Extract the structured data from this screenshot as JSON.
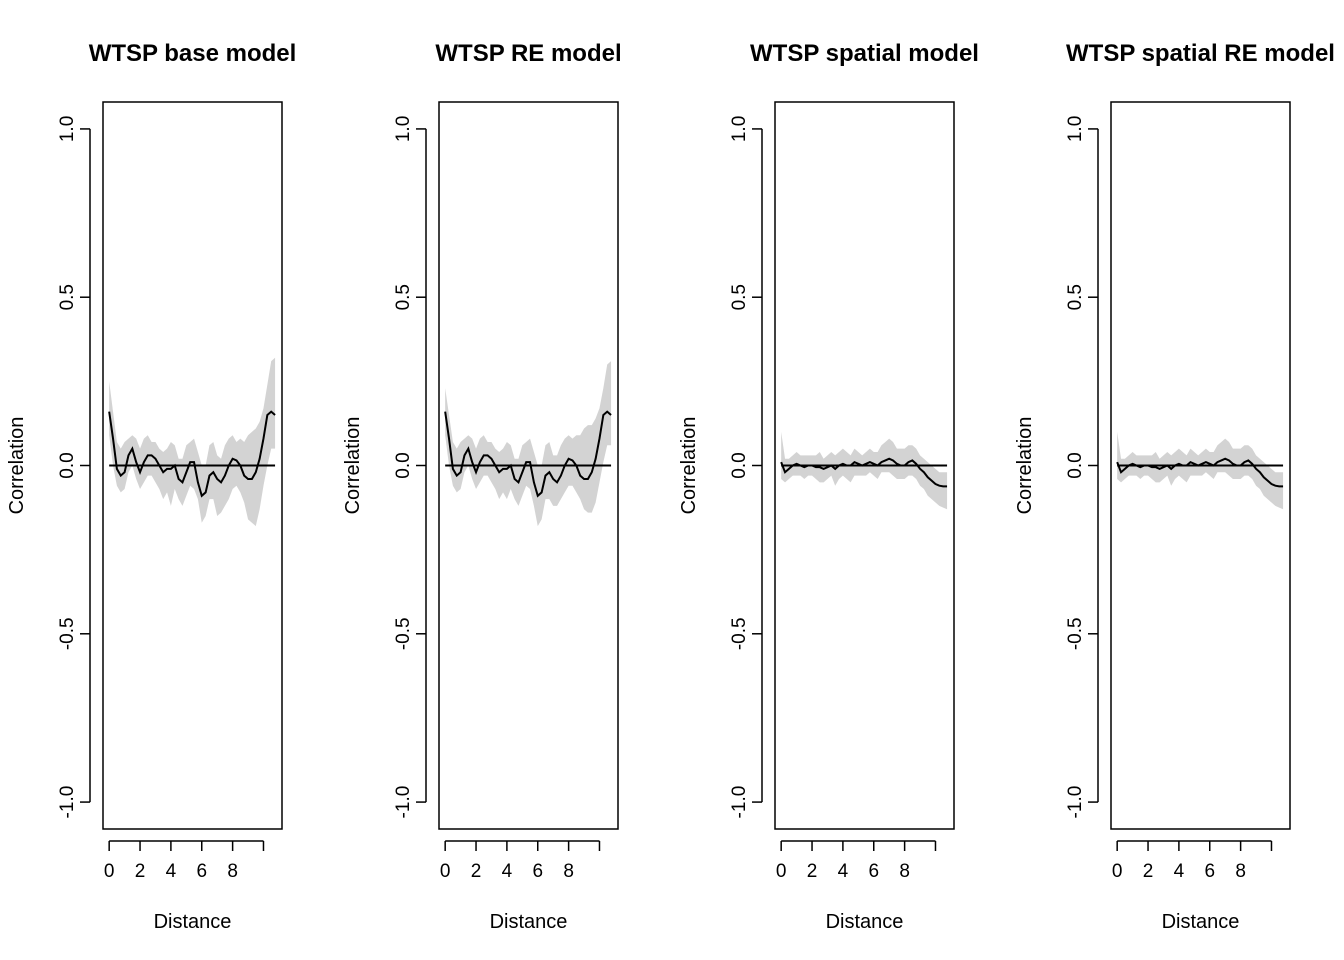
{
  "figure": {
    "background": "#ffffff",
    "band_color": "#d3d3d3",
    "line_color": "#000000",
    "zero_line_color": "#000000"
  },
  "chart_data": [
    {
      "type": "line",
      "title": "WTSP base model",
      "xlabel": "Distance",
      "ylabel": "Correlation",
      "xlim": [
        -0.4,
        11.2
      ],
      "ylim": [
        -1.08,
        1.08
      ],
      "x_ticks": [
        0,
        2,
        4,
        6,
        8
      ],
      "x_tick_labels": [
        "0",
        "2",
        "4",
        "6",
        "8"
      ],
      "y_ticks": [
        -1.0,
        -0.5,
        0.0,
        0.5,
        1.0
      ],
      "y_tick_labels": [
        "-1.0",
        "-0.5",
        "0.0",
        "0.5",
        "1.0"
      ],
      "reference_line": 0,
      "grid": false,
      "series": [
        {
          "x": [
            0,
            0.25,
            0.5,
            0.75,
            1.0,
            1.25,
            1.5,
            1.75,
            2.0,
            2.25,
            2.5,
            2.75,
            3.0,
            3.25,
            3.5,
            3.75,
            4.0,
            4.25,
            4.5,
            4.75,
            5.0,
            5.25,
            5.5,
            5.75,
            6.0,
            6.25,
            6.5,
            6.75,
            7.0,
            7.25,
            7.5,
            7.75,
            8.0,
            8.25,
            8.5,
            8.75,
            9.0,
            9.25,
            9.5,
            9.75,
            10.0,
            10.25,
            10.5,
            10.75
          ],
          "y": [
            0.16,
            0.08,
            -0.01,
            -0.03,
            -0.02,
            0.03,
            0.05,
            0.01,
            -0.02,
            0.01,
            0.03,
            0.03,
            0.02,
            0.0,
            -0.02,
            -0.01,
            -0.01,
            0.0,
            -0.04,
            -0.05,
            -0.02,
            0.01,
            0.01,
            -0.05,
            -0.09,
            -0.08,
            -0.03,
            -0.02,
            -0.04,
            -0.05,
            -0.03,
            0.0,
            0.02,
            0.015,
            0.0,
            -0.03,
            -0.04,
            -0.04,
            -0.02,
            0.02,
            0.08,
            0.15,
            0.16,
            0.15
          ],
          "lower": [
            0.09,
            0.0,
            -0.06,
            -0.08,
            -0.07,
            -0.02,
            0.0,
            -0.04,
            -0.07,
            -0.05,
            -0.03,
            -0.03,
            -0.05,
            -0.07,
            -0.1,
            -0.08,
            -0.12,
            -0.07,
            -0.1,
            -0.12,
            -0.09,
            -0.06,
            -0.07,
            -0.1,
            -0.17,
            -0.15,
            -0.1,
            -0.1,
            -0.15,
            -0.14,
            -0.12,
            -0.1,
            -0.07,
            -0.06,
            -0.08,
            -0.11,
            -0.16,
            -0.17,
            -0.18,
            -0.13,
            -0.06,
            0.0,
            0.05,
            0.05
          ],
          "upper": [
            0.25,
            0.16,
            0.07,
            0.05,
            0.07,
            0.08,
            0.09,
            0.08,
            0.05,
            0.08,
            0.09,
            0.07,
            0.07,
            0.05,
            0.04,
            0.05,
            0.07,
            0.06,
            0.02,
            0.02,
            0.06,
            0.07,
            0.08,
            0.04,
            0.0,
            0.0,
            0.06,
            0.07,
            0.03,
            0.02,
            0.06,
            0.08,
            0.09,
            0.07,
            0.08,
            0.07,
            0.09,
            0.1,
            0.11,
            0.13,
            0.17,
            0.24,
            0.31,
            0.32
          ]
        }
      ]
    },
    {
      "type": "line",
      "title": "WTSP RE model",
      "xlabel": "Distance",
      "ylabel": "Correlation",
      "xlim": [
        -0.4,
        11.2
      ],
      "ylim": [
        -1.08,
        1.08
      ],
      "x_ticks": [
        0,
        2,
        4,
        6,
        8
      ],
      "x_tick_labels": [
        "0",
        "2",
        "4",
        "6",
        "8"
      ],
      "y_ticks": [
        -1.0,
        -0.5,
        0.0,
        0.5,
        1.0
      ],
      "y_tick_labels": [
        "-1.0",
        "-0.5",
        "0.0",
        "0.5",
        "1.0"
      ],
      "reference_line": 0,
      "grid": false,
      "series": [
        {
          "x": [
            0,
            0.25,
            0.5,
            0.75,
            1.0,
            1.25,
            1.5,
            1.75,
            2.0,
            2.25,
            2.5,
            2.75,
            3.0,
            3.25,
            3.5,
            3.75,
            4.0,
            4.25,
            4.5,
            4.75,
            5.0,
            5.25,
            5.5,
            5.75,
            6.0,
            6.25,
            6.5,
            6.75,
            7.0,
            7.25,
            7.5,
            7.75,
            8.0,
            8.25,
            8.5,
            8.75,
            9.0,
            9.25,
            9.5,
            9.75,
            10.0,
            10.25,
            10.5,
            10.75
          ],
          "y": [
            0.16,
            0.08,
            -0.01,
            -0.03,
            -0.02,
            0.03,
            0.05,
            0.01,
            -0.02,
            0.01,
            0.03,
            0.03,
            0.02,
            0.0,
            -0.02,
            -0.01,
            -0.01,
            0.0,
            -0.04,
            -0.05,
            -0.02,
            0.01,
            0.01,
            -0.05,
            -0.09,
            -0.08,
            -0.03,
            -0.02,
            -0.04,
            -0.05,
            -0.03,
            0.0,
            0.02,
            0.015,
            0.0,
            -0.03,
            -0.04,
            -0.04,
            -0.02,
            0.02,
            0.08,
            0.15,
            0.16,
            0.15
          ],
          "lower": [
            0.09,
            0.0,
            -0.06,
            -0.08,
            -0.07,
            -0.02,
            0.0,
            -0.04,
            -0.07,
            -0.05,
            -0.03,
            -0.03,
            -0.05,
            -0.07,
            -0.1,
            -0.08,
            -0.1,
            -0.07,
            -0.1,
            -0.12,
            -0.09,
            -0.06,
            -0.07,
            -0.12,
            -0.18,
            -0.16,
            -0.1,
            -0.1,
            -0.12,
            -0.12,
            -0.1,
            -0.08,
            -0.06,
            -0.06,
            -0.08,
            -0.1,
            -0.13,
            -0.14,
            -0.14,
            -0.11,
            -0.05,
            0.01,
            0.06,
            0.06
          ],
          "upper": [
            0.23,
            0.15,
            0.07,
            0.05,
            0.07,
            0.08,
            0.09,
            0.08,
            0.05,
            0.08,
            0.09,
            0.07,
            0.07,
            0.05,
            0.04,
            0.05,
            0.07,
            0.06,
            0.02,
            0.02,
            0.06,
            0.07,
            0.08,
            0.04,
            0.0,
            0.0,
            0.06,
            0.07,
            0.03,
            0.03,
            0.06,
            0.08,
            0.09,
            0.08,
            0.09,
            0.09,
            0.11,
            0.12,
            0.12,
            0.14,
            0.17,
            0.23,
            0.3,
            0.31
          ]
        }
      ]
    },
    {
      "type": "line",
      "title": "WTSP spatial model",
      "xlabel": "Distance",
      "ylabel": "Correlation",
      "xlim": [
        -0.4,
        11.2
      ],
      "ylim": [
        -1.08,
        1.08
      ],
      "x_ticks": [
        0,
        2,
        4,
        6,
        8
      ],
      "x_tick_labels": [
        "0",
        "2",
        "4",
        "6",
        "8"
      ],
      "y_ticks": [
        -1.0,
        -0.5,
        0.0,
        0.5,
        1.0
      ],
      "y_tick_labels": [
        "-1.0",
        "-0.5",
        "0.0",
        "0.5",
        "1.0"
      ],
      "reference_line": 0,
      "grid": false,
      "series": [
        {
          "x": [
            0,
            0.25,
            0.5,
            0.75,
            1.0,
            1.25,
            1.5,
            1.75,
            2.0,
            2.25,
            2.5,
            2.75,
            3.0,
            3.25,
            3.5,
            3.75,
            4.0,
            4.25,
            4.5,
            4.75,
            5.0,
            5.25,
            5.5,
            5.75,
            6.0,
            6.25,
            6.5,
            6.75,
            7.0,
            7.25,
            7.5,
            7.75,
            8.0,
            8.25,
            8.5,
            8.75,
            9.0,
            9.25,
            9.5,
            9.75,
            10.0,
            10.25,
            10.5,
            10.75
          ],
          "y": [
            0.01,
            -0.02,
            -0.01,
            0.0,
            0.005,
            0.0,
            -0.005,
            0.0,
            0.0,
            -0.005,
            -0.005,
            -0.01,
            -0.005,
            0.0,
            -0.01,
            0.0,
            0.005,
            0.0,
            0.0,
            0.01,
            0.005,
            0.0,
            0.005,
            0.01,
            0.005,
            0.0,
            0.01,
            0.015,
            0.02,
            0.015,
            0.005,
            0.0,
            0.0,
            0.01,
            0.015,
            0.005,
            -0.01,
            -0.02,
            -0.035,
            -0.045,
            -0.055,
            -0.06,
            -0.062,
            -0.062
          ],
          "lower": [
            -0.04,
            -0.05,
            -0.04,
            -0.03,
            -0.03,
            -0.03,
            -0.04,
            -0.03,
            -0.03,
            -0.04,
            -0.05,
            -0.05,
            -0.04,
            -0.03,
            -0.06,
            -0.04,
            -0.03,
            -0.04,
            -0.05,
            -0.03,
            -0.03,
            -0.03,
            -0.03,
            -0.02,
            -0.03,
            -0.04,
            -0.02,
            -0.02,
            -0.02,
            -0.03,
            -0.04,
            -0.04,
            -0.04,
            -0.03,
            -0.03,
            -0.04,
            -0.06,
            -0.07,
            -0.09,
            -0.1,
            -0.11,
            -0.12,
            -0.125,
            -0.13
          ],
          "upper": [
            0.1,
            0.02,
            0.02,
            0.03,
            0.04,
            0.03,
            0.03,
            0.03,
            0.03,
            0.03,
            0.04,
            0.02,
            0.03,
            0.04,
            0.03,
            0.04,
            0.05,
            0.04,
            0.03,
            0.05,
            0.04,
            0.03,
            0.04,
            0.05,
            0.04,
            0.04,
            0.06,
            0.07,
            0.08,
            0.07,
            0.05,
            0.05,
            0.05,
            0.06,
            0.06,
            0.05,
            0.03,
            0.02,
            0.01,
            0.0,
            -0.01,
            -0.02,
            -0.02,
            -0.02
          ]
        }
      ]
    },
    {
      "type": "line",
      "title": "WTSP spatial RE model",
      "xlabel": "Distance",
      "ylabel": "Correlation",
      "xlim": [
        -0.4,
        11.2
      ],
      "ylim": [
        -1.08,
        1.08
      ],
      "x_ticks": [
        0,
        2,
        4,
        6,
        8
      ],
      "x_tick_labels": [
        "0",
        "2",
        "4",
        "6",
        "8"
      ],
      "y_ticks": [
        -1.0,
        -0.5,
        0.0,
        0.5,
        1.0
      ],
      "y_tick_labels": [
        "-1.0",
        "-0.5",
        "0.0",
        "0.5",
        "1.0"
      ],
      "reference_line": 0,
      "grid": false,
      "series": [
        {
          "x": [
            0,
            0.25,
            0.5,
            0.75,
            1.0,
            1.25,
            1.5,
            1.75,
            2.0,
            2.25,
            2.5,
            2.75,
            3.0,
            3.25,
            3.5,
            3.75,
            4.0,
            4.25,
            4.5,
            4.75,
            5.0,
            5.25,
            5.5,
            5.75,
            6.0,
            6.25,
            6.5,
            6.75,
            7.0,
            7.25,
            7.5,
            7.75,
            8.0,
            8.25,
            8.5,
            8.75,
            9.0,
            9.25,
            9.5,
            9.75,
            10.0,
            10.25,
            10.5,
            10.75
          ],
          "y": [
            0.01,
            -0.02,
            -0.01,
            0.0,
            0.005,
            0.0,
            -0.005,
            0.0,
            0.0,
            -0.005,
            -0.005,
            -0.01,
            -0.005,
            0.0,
            -0.01,
            0.0,
            0.005,
            0.0,
            0.0,
            0.01,
            0.005,
            0.0,
            0.005,
            0.01,
            0.005,
            0.0,
            0.01,
            0.015,
            0.02,
            0.015,
            0.005,
            0.0,
            0.0,
            0.01,
            0.015,
            0.005,
            -0.01,
            -0.02,
            -0.035,
            -0.045,
            -0.055,
            -0.06,
            -0.062,
            -0.062
          ],
          "lower": [
            -0.04,
            -0.05,
            -0.04,
            -0.03,
            -0.03,
            -0.03,
            -0.04,
            -0.03,
            -0.03,
            -0.04,
            -0.05,
            -0.05,
            -0.04,
            -0.03,
            -0.06,
            -0.04,
            -0.03,
            -0.04,
            -0.05,
            -0.03,
            -0.03,
            -0.03,
            -0.03,
            -0.02,
            -0.03,
            -0.04,
            -0.02,
            -0.02,
            -0.02,
            -0.03,
            -0.04,
            -0.04,
            -0.04,
            -0.03,
            -0.03,
            -0.04,
            -0.06,
            -0.07,
            -0.09,
            -0.1,
            -0.11,
            -0.12,
            -0.125,
            -0.13
          ],
          "upper": [
            0.1,
            0.02,
            0.02,
            0.03,
            0.04,
            0.03,
            0.03,
            0.03,
            0.03,
            0.03,
            0.04,
            0.02,
            0.03,
            0.04,
            0.03,
            0.04,
            0.05,
            0.04,
            0.03,
            0.05,
            0.04,
            0.03,
            0.04,
            0.05,
            0.04,
            0.04,
            0.06,
            0.07,
            0.08,
            0.07,
            0.05,
            0.05,
            0.05,
            0.06,
            0.06,
            0.05,
            0.03,
            0.02,
            0.01,
            0.0,
            -0.01,
            -0.02,
            -0.02,
            -0.02
          ]
        }
      ]
    }
  ]
}
